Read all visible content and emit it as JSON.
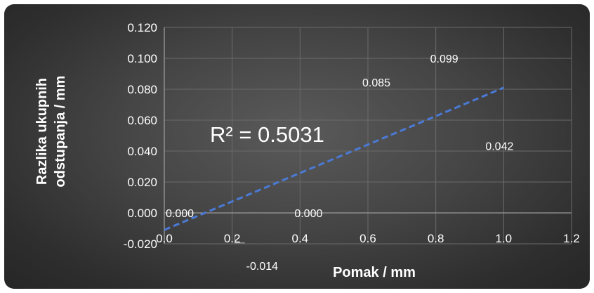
{
  "chart_data": {
    "type": "scatter",
    "xlabel": "Pomak / mm",
    "ylabel_lines": [
      "Razlika ukupnih",
      "odstupanja / mm"
    ],
    "xlim": [
      0,
      1.2
    ],
    "ylim": [
      -0.02,
      0.12
    ],
    "x_ticks": [
      "0.0",
      "0.2",
      "0.4",
      "0.6",
      "0.8",
      "1.0",
      "1.2"
    ],
    "y_ticks": [
      "-0.020",
      "0.000",
      "0.020",
      "0.040",
      "0.060",
      "0.080",
      "0.100",
      "0.120"
    ],
    "grid": true,
    "points": [
      {
        "x": 0.0,
        "y": 0.0,
        "label": "0.000"
      },
      {
        "x": 0.2,
        "y": -0.014,
        "label": "-0.014"
      },
      {
        "x": 0.4,
        "y": 0.0,
        "label": "0.000"
      },
      {
        "x": 0.6,
        "y": 0.085,
        "label": "0.085"
      },
      {
        "x": 0.8,
        "y": 0.099,
        "label": "0.099"
      },
      {
        "x": 1.0,
        "y": 0.042,
        "label": "0.042"
      }
    ],
    "trendline": {
      "type": "linear",
      "x": [
        0.0,
        1.0
      ],
      "y": [
        -0.011,
        0.081
      ],
      "color": "#4a7ad6",
      "style": "dashed"
    },
    "r_squared_label": "R² = 0.5031"
  }
}
